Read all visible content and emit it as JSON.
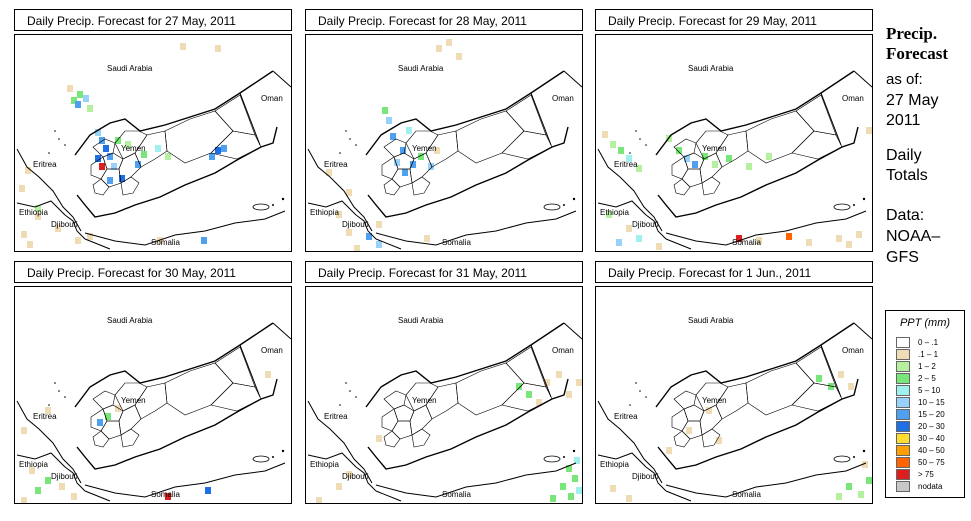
{
  "sidebar": {
    "title_line1": "Precip.",
    "title_line2": "Forecast",
    "asof_label": "as of:",
    "asof_line1": "27 May",
    "asof_line2": "2011",
    "totals_line1": "Daily",
    "totals_line2": "Totals",
    "source_label": "Data:",
    "source_line1": "NOAA–",
    "source_line2": "GFS"
  },
  "panels": [
    {
      "title": "Daily Precip. Forecast for  27 May, 2011"
    },
    {
      "title": "Daily Precip. Forecast for  28 May, 2011"
    },
    {
      "title": "Daily Precip. Forecast for  29 May, 2011"
    },
    {
      "title": "Daily Precip. Forecast for  30 May, 2011"
    },
    {
      "title": "Daily Precip. Forecast for  31 May, 2011"
    },
    {
      "title": "Daily Precip. Forecast for  1 Jun., 2011"
    }
  ],
  "map_labels": {
    "saudi": "Saudi Arabia",
    "oman": "Oman",
    "yemen": "Yemen",
    "eritrea": "Eritrea",
    "ethiopia": "Ethiopia",
    "djibouti": "Djibouti",
    "somalia": "Somalia"
  },
  "legend": {
    "title": "PPT (mm)",
    "items": [
      {
        "label": "0 – .1",
        "color": "#ffffff"
      },
      {
        "label": ".1 – 1",
        "color": "#f0dcb4"
      },
      {
        "label": "1 – 2",
        "color": "#b4f0a0"
      },
      {
        "label": "2 – 5",
        "color": "#78e678"
      },
      {
        "label": "5 – 10",
        "color": "#a0f0f0"
      },
      {
        "label": "10 – 15",
        "color": "#96d2fa"
      },
      {
        "label": "15 – 20",
        "color": "#50a0f0"
      },
      {
        "label": "20 – 30",
        "color": "#1e6ee6"
      },
      {
        "label": "30 – 40",
        "color": "#ffdc32"
      },
      {
        "label": "40 – 50",
        "color": "#ffa000"
      },
      {
        "label": "50 – 75",
        "color": "#ff6400"
      },
      {
        "label": "> 75",
        "color": "#dc1e1e"
      },
      {
        "label": "nodata",
        "color": "#c8c8c8"
      }
    ]
  },
  "precip_cells": [
    [
      {
        "x": 52,
        "y": 50,
        "c": 1
      },
      {
        "x": 56,
        "y": 62,
        "c": 3
      },
      {
        "x": 62,
        "y": 56,
        "c": 3
      },
      {
        "x": 60,
        "y": 66,
        "c": 6
      },
      {
        "x": 68,
        "y": 60,
        "c": 5
      },
      {
        "x": 72,
        "y": 70,
        "c": 2
      },
      {
        "x": 80,
        "y": 94,
        "c": 5
      },
      {
        "x": 84,
        "y": 102,
        "c": 6
      },
      {
        "x": 88,
        "y": 110,
        "c": 7
      },
      {
        "x": 80,
        "y": 120,
        "c": 7
      },
      {
        "x": 84,
        "y": 128,
        "c": 11
      },
      {
        "x": 92,
        "y": 118,
        "c": 6
      },
      {
        "x": 96,
        "y": 128,
        "c": 5
      },
      {
        "x": 100,
        "y": 102,
        "c": 3
      },
      {
        "x": 110,
        "y": 106,
        "c": 2
      },
      {
        "x": 120,
        "y": 126,
        "c": 6
      },
      {
        "x": 126,
        "y": 116,
        "c": 3
      },
      {
        "x": 140,
        "y": 110,
        "c": 4
      },
      {
        "x": 150,
        "y": 118,
        "c": 2
      },
      {
        "x": 194,
        "y": 118,
        "c": 6
      },
      {
        "x": 200,
        "y": 112,
        "c": 7
      },
      {
        "x": 206,
        "y": 110,
        "c": 6
      },
      {
        "x": 165,
        "y": 8,
        "c": 1
      },
      {
        "x": 200,
        "y": 10,
        "c": 1
      },
      {
        "x": 10,
        "y": 132,
        "c": 1
      },
      {
        "x": 4,
        "y": 150,
        "c": 1
      },
      {
        "x": 20,
        "y": 178,
        "c": 1
      },
      {
        "x": 6,
        "y": 196,
        "c": 1
      },
      {
        "x": 12,
        "y": 206,
        "c": 1
      },
      {
        "x": 40,
        "y": 190,
        "c": 1
      },
      {
        "x": 60,
        "y": 202,
        "c": 1
      },
      {
        "x": 72,
        "y": 198,
        "c": 1
      },
      {
        "x": 186,
        "y": 202,
        "c": 6
      },
      {
        "x": 142,
        "y": 202,
        "c": 1
      },
      {
        "x": 20,
        "y": 170,
        "c": 2
      },
      {
        "x": 92,
        "y": 142,
        "c": 6
      },
      {
        "x": 104,
        "y": 140,
        "c": 7
      }
    ],
    [
      {
        "x": 130,
        "y": 10,
        "c": 1
      },
      {
        "x": 140,
        "y": 4,
        "c": 1
      },
      {
        "x": 150,
        "y": 18,
        "c": 1
      },
      {
        "x": 76,
        "y": 72,
        "c": 3
      },
      {
        "x": 80,
        "y": 82,
        "c": 5
      },
      {
        "x": 84,
        "y": 98,
        "c": 6
      },
      {
        "x": 94,
        "y": 112,
        "c": 6
      },
      {
        "x": 88,
        "y": 124,
        "c": 5
      },
      {
        "x": 96,
        "y": 134,
        "c": 6
      },
      {
        "x": 104,
        "y": 126,
        "c": 6
      },
      {
        "x": 112,
        "y": 118,
        "c": 3
      },
      {
        "x": 122,
        "y": 128,
        "c": 5
      },
      {
        "x": 128,
        "y": 112,
        "c": 1
      },
      {
        "x": 100,
        "y": 92,
        "c": 4
      },
      {
        "x": 20,
        "y": 134,
        "c": 1
      },
      {
        "x": 40,
        "y": 154,
        "c": 1
      },
      {
        "x": 30,
        "y": 176,
        "c": 1
      },
      {
        "x": 40,
        "y": 194,
        "c": 1
      },
      {
        "x": 60,
        "y": 198,
        "c": 6
      },
      {
        "x": 70,
        "y": 206,
        "c": 5
      },
      {
        "x": 48,
        "y": 210,
        "c": 1
      },
      {
        "x": 118,
        "y": 200,
        "c": 1
      },
      {
        "x": 70,
        "y": 186,
        "c": 1
      }
    ],
    [
      {
        "x": 6,
        "y": 96,
        "c": 1
      },
      {
        "x": 14,
        "y": 106,
        "c": 2
      },
      {
        "x": 22,
        "y": 112,
        "c": 3
      },
      {
        "x": 30,
        "y": 120,
        "c": 4
      },
      {
        "x": 40,
        "y": 130,
        "c": 2
      },
      {
        "x": 70,
        "y": 100,
        "c": 2
      },
      {
        "x": 80,
        "y": 112,
        "c": 3
      },
      {
        "x": 88,
        "y": 120,
        "c": 5
      },
      {
        "x": 96,
        "y": 126,
        "c": 6
      },
      {
        "x": 106,
        "y": 118,
        "c": 3
      },
      {
        "x": 116,
        "y": 126,
        "c": 2
      },
      {
        "x": 130,
        "y": 120,
        "c": 3
      },
      {
        "x": 150,
        "y": 128,
        "c": 2
      },
      {
        "x": 170,
        "y": 118,
        "c": 2
      },
      {
        "x": 10,
        "y": 176,
        "c": 2
      },
      {
        "x": 30,
        "y": 190,
        "c": 1
      },
      {
        "x": 40,
        "y": 200,
        "c": 4
      },
      {
        "x": 20,
        "y": 204,
        "c": 5
      },
      {
        "x": 60,
        "y": 208,
        "c": 1
      },
      {
        "x": 140,
        "y": 200,
        "c": 11
      },
      {
        "x": 160,
        "y": 202,
        "c": 1
      },
      {
        "x": 190,
        "y": 198,
        "c": 10
      },
      {
        "x": 210,
        "y": 204,
        "c": 1
      },
      {
        "x": 240,
        "y": 200,
        "c": 1
      },
      {
        "x": 260,
        "y": 196,
        "c": 1
      },
      {
        "x": 250,
        "y": 206,
        "c": 1
      },
      {
        "x": 270,
        "y": 92,
        "c": 1
      }
    ],
    [
      {
        "x": 82,
        "y": 132,
        "c": 6
      },
      {
        "x": 90,
        "y": 126,
        "c": 3
      },
      {
        "x": 100,
        "y": 118,
        "c": 1
      },
      {
        "x": 6,
        "y": 140,
        "c": 1
      },
      {
        "x": 20,
        "y": 200,
        "c": 3
      },
      {
        "x": 30,
        "y": 190,
        "c": 3
      },
      {
        "x": 14,
        "y": 180,
        "c": 1
      },
      {
        "x": 6,
        "y": 210,
        "c": 1
      },
      {
        "x": 44,
        "y": 196,
        "c": 1
      },
      {
        "x": 56,
        "y": 206,
        "c": 1
      },
      {
        "x": 150,
        "y": 206,
        "c": 11
      },
      {
        "x": 190,
        "y": 200,
        "c": 7
      },
      {
        "x": 250,
        "y": 84,
        "c": 1
      },
      {
        "x": 30,
        "y": 120,
        "c": 1
      }
    ],
    [
      {
        "x": 210,
        "y": 96,
        "c": 3
      },
      {
        "x": 220,
        "y": 104,
        "c": 3
      },
      {
        "x": 238,
        "y": 92,
        "c": 1
      },
      {
        "x": 250,
        "y": 84,
        "c": 1
      },
      {
        "x": 260,
        "y": 104,
        "c": 1
      },
      {
        "x": 270,
        "y": 92,
        "c": 1
      },
      {
        "x": 230,
        "y": 112,
        "c": 1
      },
      {
        "x": 70,
        "y": 148,
        "c": 1
      },
      {
        "x": 30,
        "y": 196,
        "c": 1
      },
      {
        "x": 40,
        "y": 184,
        "c": 1
      },
      {
        "x": 10,
        "y": 210,
        "c": 1
      },
      {
        "x": 260,
        "y": 178,
        "c": 3
      },
      {
        "x": 266,
        "y": 188,
        "c": 3
      },
      {
        "x": 254,
        "y": 196,
        "c": 3
      },
      {
        "x": 262,
        "y": 206,
        "c": 3
      },
      {
        "x": 270,
        "y": 200,
        "c": 4
      },
      {
        "x": 244,
        "y": 208,
        "c": 3
      },
      {
        "x": 268,
        "y": 170,
        "c": 4
      }
    ],
    [
      {
        "x": 220,
        "y": 88,
        "c": 3
      },
      {
        "x": 232,
        "y": 96,
        "c": 3
      },
      {
        "x": 242,
        "y": 84,
        "c": 1
      },
      {
        "x": 252,
        "y": 96,
        "c": 1
      },
      {
        "x": 110,
        "y": 120,
        "c": 1
      },
      {
        "x": 90,
        "y": 140,
        "c": 1
      },
      {
        "x": 70,
        "y": 160,
        "c": 1
      },
      {
        "x": 14,
        "y": 198,
        "c": 1
      },
      {
        "x": 30,
        "y": 208,
        "c": 1
      },
      {
        "x": 250,
        "y": 196,
        "c": 3
      },
      {
        "x": 262,
        "y": 204,
        "c": 2
      },
      {
        "x": 270,
        "y": 190,
        "c": 3
      },
      {
        "x": 240,
        "y": 206,
        "c": 2
      },
      {
        "x": 266,
        "y": 174,
        "c": 1
      },
      {
        "x": 120,
        "y": 150,
        "c": 1
      }
    ]
  ]
}
